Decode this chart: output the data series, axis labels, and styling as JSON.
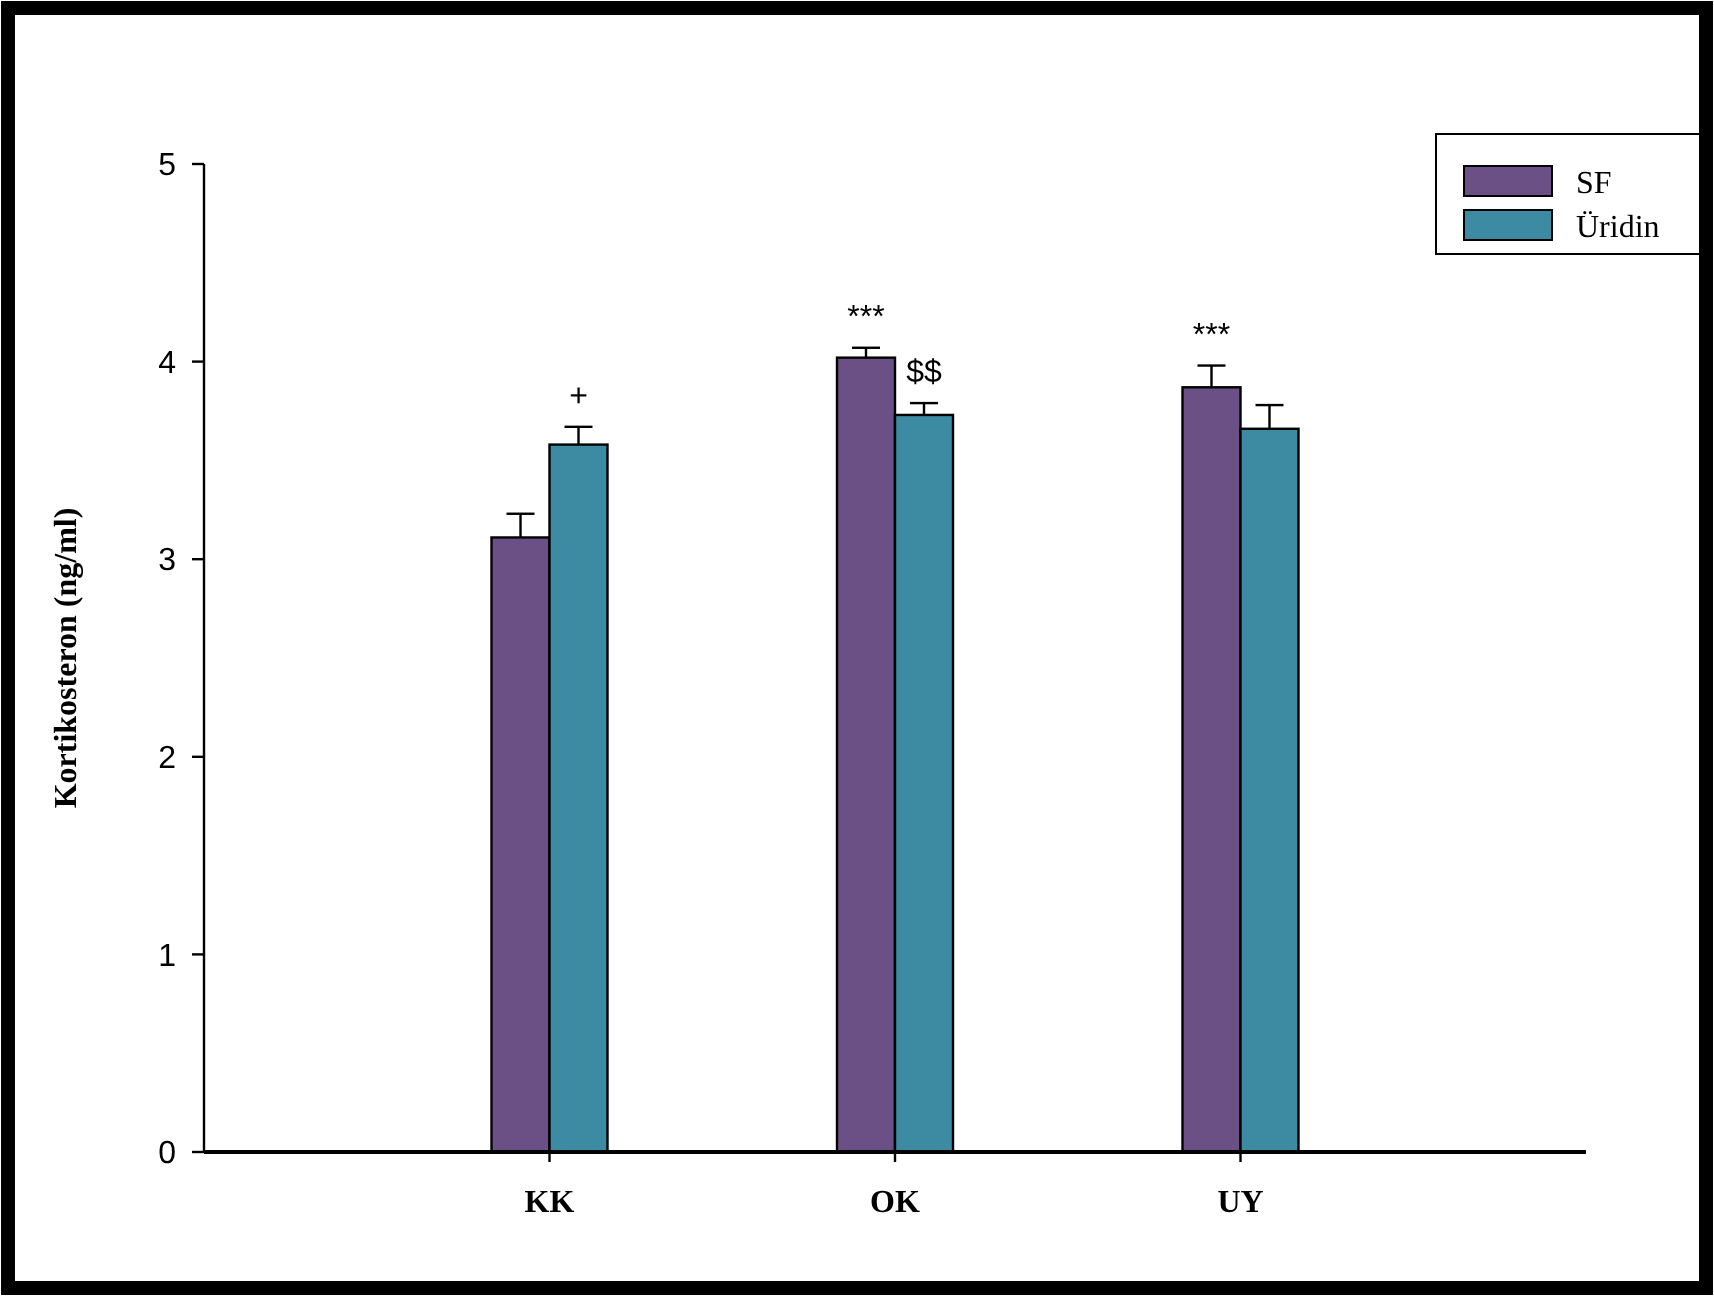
{
  "chart_data": {
    "type": "bar",
    "ylabel": "Kortikosteron (ng/ml)",
    "categories": [
      "KK",
      "OK",
      "UY"
    ],
    "series": [
      {
        "name": "SF",
        "color": "#6a5085",
        "values": [
          3.11,
          4.02,
          3.87
        ],
        "errors": [
          [
            3.11,
            3.23
          ],
          [
            4.02,
            4.07
          ],
          [
            3.87,
            3.98
          ]
        ]
      },
      {
        "name": "Üridin",
        "color": "#3d8ba3",
        "values": [
          3.58,
          3.73,
          3.66
        ],
        "errors": [
          [
            3.58,
            3.67
          ],
          [
            3.73,
            3.79
          ],
          [
            3.66,
            3.78
          ]
        ]
      }
    ],
    "ylim": [
      0,
      5
    ],
    "yticks": [
      0,
      1,
      2,
      3,
      4,
      5
    ],
    "grid": false,
    "legend": "top right",
    "annotations": [
      {
        "text": "+",
        "x": "KK",
        "y": 3.58
      },
      {
        "text": "***",
        "x": "OK",
        "y": 4.02
      },
      {
        "text": "$$",
        "x": "OK",
        "y": 3.73
      },
      {
        "text": "***",
        "x": "UY",
        "y": 3.87
      }
    ]
  }
}
